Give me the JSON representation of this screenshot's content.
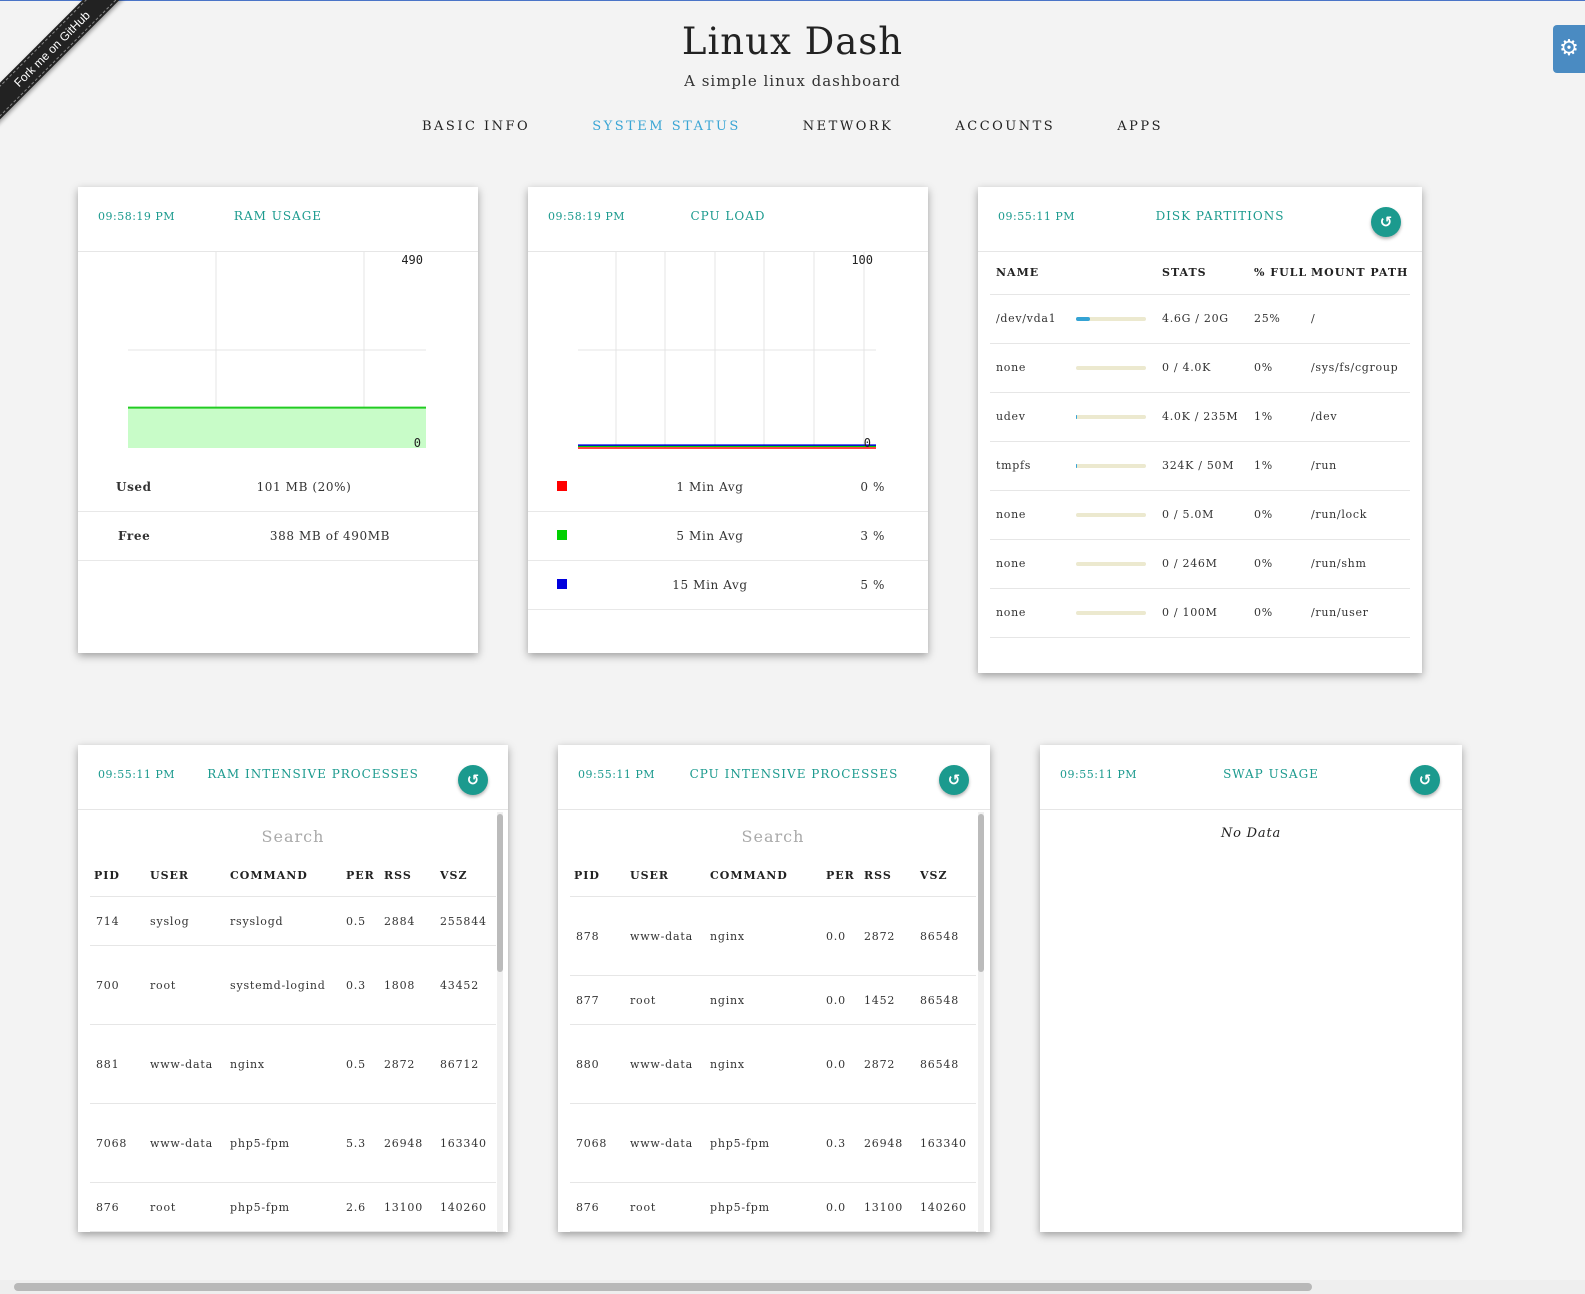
{
  "ribbon": "Fork me on GitHub",
  "header": {
    "title": "Linux Dash",
    "subtitle": "A simple linux dashboard"
  },
  "nav": [
    "BASIC INFO",
    "SYSTEM STATUS",
    "NETWORK",
    "ACCOUNTS",
    "APPS"
  ],
  "nav_active": "SYSTEM STATUS",
  "ram_usage": {
    "time": "09:58:19 PM",
    "title": "RAM USAGE",
    "chart_data": {
      "type": "area",
      "ylim": [
        0,
        490
      ],
      "y_max_label": "490",
      "y_min_label": "0",
      "series": [
        {
          "values": [
            101,
            101,
            101
          ]
        }
      ]
    },
    "rows": [
      {
        "label": "Used",
        "value": "101 MB (20%)"
      },
      {
        "label": "Free",
        "value": "388 MB of 490MB"
      }
    ]
  },
  "cpu_load": {
    "time": "09:58:19 PM",
    "title": "CPU LOAD",
    "chart_data": {
      "type": "line",
      "ylim": [
        0,
        100
      ],
      "y_max_label": "100",
      "y_min_label": "0",
      "series": [
        {
          "name": "1 Min Avg",
          "color": "#ff0000",
          "values": [
            0,
            0
          ]
        },
        {
          "name": "5 Min Avg",
          "color": "#00d000",
          "values": [
            3,
            3
          ]
        },
        {
          "name": "15 Min Avg",
          "color": "#0000dd",
          "values": [
            5,
            5
          ]
        }
      ]
    },
    "rows": [
      {
        "color": "#ff0000",
        "label": "1 Min Avg",
        "value": "0 %"
      },
      {
        "color": "#00d000",
        "label": "5 Min Avg",
        "value": "3 %"
      },
      {
        "color": "#0000dd",
        "label": "15 Min Avg",
        "value": "5 %"
      }
    ]
  },
  "disk": {
    "time": "09:55:11 PM",
    "title": "DISK PARTITIONS",
    "columns": [
      "NAME",
      "STATS",
      "% FULL",
      "MOUNT PATH"
    ],
    "rows": [
      {
        "name": "/dev/vda1",
        "stats": "4.6G / 20G",
        "full": "25%",
        "pct": 25,
        "mount": "/"
      },
      {
        "name": "none",
        "stats": "0 / 4.0K",
        "full": "0%",
        "pct": 0,
        "mount": "/sys/fs/cgroup"
      },
      {
        "name": "udev",
        "stats": "4.0K / 235M",
        "full": "1%",
        "pct": 1,
        "mount": "/dev"
      },
      {
        "name": "tmpfs",
        "stats": "324K / 50M",
        "full": "1%",
        "pct": 1,
        "mount": "/run"
      },
      {
        "name": "none",
        "stats": "0 / 5.0M",
        "full": "0%",
        "pct": 0,
        "mount": "/run/lock"
      },
      {
        "name": "none",
        "stats": "0 / 246M",
        "full": "0%",
        "pct": 0,
        "mount": "/run/shm"
      },
      {
        "name": "none",
        "stats": "0 / 100M",
        "full": "0%",
        "pct": 0,
        "mount": "/run/user"
      }
    ]
  },
  "ram_proc": {
    "time": "09:55:11 PM",
    "title": "RAM INTENSIVE PROCESSES",
    "search_placeholder": "Search",
    "columns": [
      "PID",
      "USER",
      "COMMAND",
      "PER",
      "RSS",
      "VSZ"
    ],
    "rows": [
      [
        "714",
        "syslog",
        "rsyslogd",
        "0.5",
        "2884",
        "255844"
      ],
      [
        "700",
        "root",
        "systemd-logind",
        "0.3",
        "1808",
        "43452"
      ],
      [
        "881",
        "www-data",
        "nginx",
        "0.5",
        "2872",
        "86712"
      ],
      [
        "7068",
        "www-data",
        "php5-fpm",
        "5.3",
        "26948",
        "163340"
      ],
      [
        "876",
        "root",
        "php5-fpm",
        "2.6",
        "13100",
        "140260"
      ]
    ]
  },
  "cpu_proc": {
    "time": "09:55:11 PM",
    "title": "CPU INTENSIVE PROCESSES",
    "search_placeholder": "Search",
    "columns": [
      "PID",
      "USER",
      "COMMAND",
      "PER",
      "RSS",
      "VSZ"
    ],
    "rows": [
      [
        "878",
        "www-data",
        "nginx",
        "0.0",
        "2872",
        "86548"
      ],
      [
        "877",
        "root",
        "nginx",
        "0.0",
        "1452",
        "86548"
      ],
      [
        "880",
        "www-data",
        "nginx",
        "0.0",
        "2872",
        "86548"
      ],
      [
        "7068",
        "www-data",
        "php5-fpm",
        "0.3",
        "26948",
        "163340"
      ],
      [
        "876",
        "root",
        "php5-fpm",
        "0.0",
        "13100",
        "140260"
      ]
    ]
  },
  "swap": {
    "time": "09:55:11 PM",
    "title": "SWAP USAGE",
    "empty": "No Data"
  },
  "icons": {
    "refresh": "refresh-icon",
    "settings": "gear-icon"
  }
}
